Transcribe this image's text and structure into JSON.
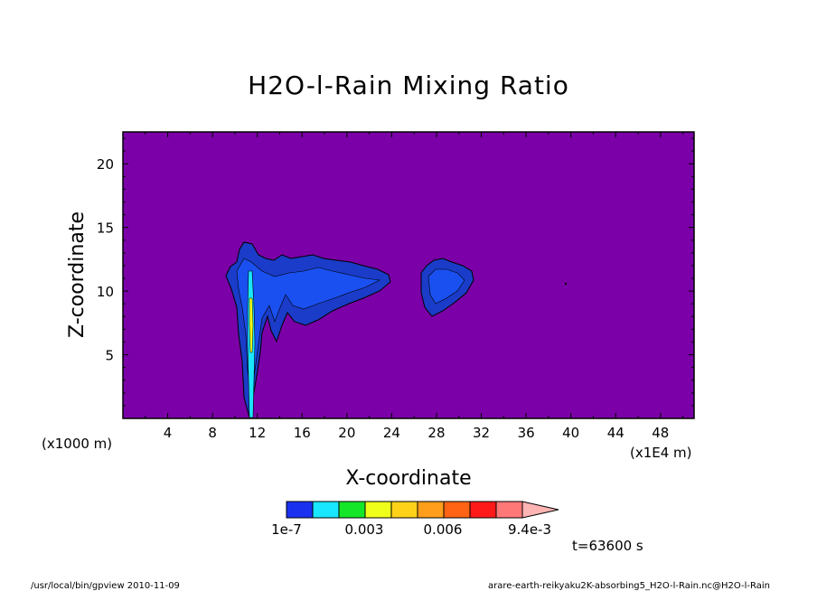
{
  "chart_data": {
    "type": "heatmap",
    "title": "H2O-l-Rain Mixing Ratio",
    "xlabel": "X-coordinate",
    "ylabel": "Z-coordinate",
    "x_unit_left": "(x1000 m)",
    "x_unit_right": "(x1E4 m)",
    "x_ticks": [
      "4",
      "8",
      "12",
      "16",
      "20",
      "24",
      "28",
      "32",
      "36",
      "40",
      "44",
      "48"
    ],
    "y_ticks": [
      "5",
      "10",
      "15",
      "20"
    ],
    "xlim": [
      0,
      51
    ],
    "ylim": [
      0,
      22.5
    ],
    "background_color": "#7b00a8",
    "colorbar": {
      "colors": [
        "#1a32f0",
        "#19e6ff",
        "#16e628",
        "#f0ff1a",
        "#ffd21a",
        "#ff9e1a",
        "#ff6414",
        "#ff1a1a",
        "#ff7878",
        "#ffb4b4"
      ],
      "labels": [
        "1e-7",
        "0.003",
        "0.006",
        "9.4e-3"
      ]
    },
    "regions": [
      {
        "level": "1e-7",
        "x_range": [
          9,
          24
        ],
        "z_range": [
          6,
          14
        ],
        "color": "#1a3cdc"
      },
      {
        "level": "1e-7",
        "x_range": [
          26.5,
          31
        ],
        "z_range": [
          8,
          12.5
        ],
        "color": "#1a3cdc"
      },
      {
        "level": "column",
        "x_range": [
          11.5,
          12
        ],
        "z_range": [
          0,
          13
        ],
        "color": "#1a32f0"
      }
    ],
    "time_label": "t=63600 s"
  },
  "footer": {
    "left": "/usr/local/bin/gpview   2010-11-09",
    "right": "arare-earth-reikyaku2K-absorbing5_H2O-l-Rain.nc@H2O-l-Rain"
  }
}
